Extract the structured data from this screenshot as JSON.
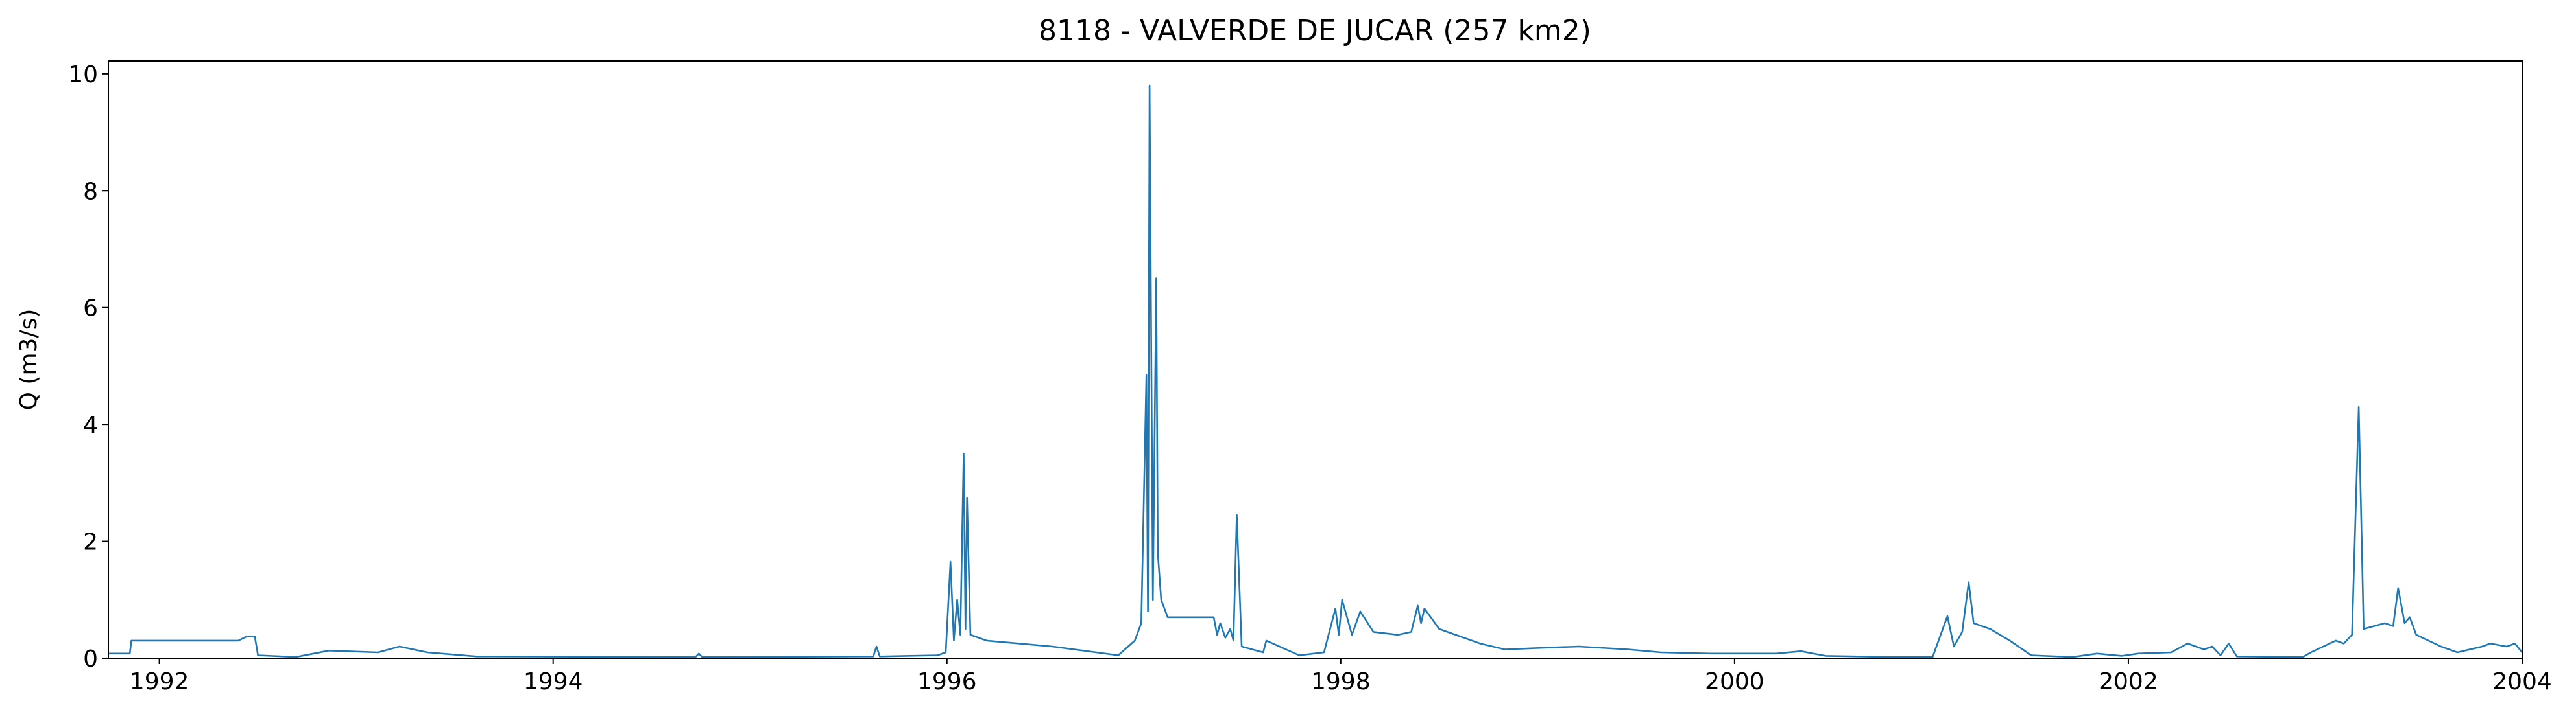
{
  "chart_data": {
    "type": "line",
    "title": "8118 - VALVERDE DE JUCAR (257 km2)",
    "ylabel": "Q (m3/s)",
    "color": "#1f77b4",
    "grid": false,
    "xlim": [
      1991.741,
      2004
    ],
    "xticks": [
      1992,
      1994,
      1996,
      1998,
      2000,
      2002,
      2004
    ],
    "ylim": [
      0,
      10.22
    ],
    "yticks": [
      0,
      2,
      4,
      6,
      8,
      10
    ],
    "x": [
      1991.741,
      1991.85,
      1991.858,
      1992.401,
      1992.443,
      1992.485,
      1992.501,
      1992.693,
      1992.86,
      1993.111,
      1993.22,
      1993.362,
      1993.612,
      1994.723,
      1994.74,
      1994.757,
      1995.626,
      1995.642,
      1995.659,
      1995.952,
      1995.994,
      1996.018,
      1996.035,
      1996.052,
      1996.068,
      1996.085,
      1996.094,
      1996.102,
      1996.119,
      1996.202,
      1996.369,
      1996.536,
      1996.87,
      1996.954,
      1996.987,
      1997.013,
      1997.021,
      1997.029,
      1997.046,
      1997.063,
      1997.071,
      1997.088,
      1997.121,
      1997.355,
      1997.372,
      1997.388,
      1997.414,
      1997.439,
      1997.455,
      1997.472,
      1997.497,
      1997.606,
      1997.622,
      1997.789,
      1997.915,
      1997.973,
      1997.99,
      1998.007,
      1998.057,
      1998.099,
      1998.166,
      1998.291,
      1998.358,
      1998.391,
      1998.408,
      1998.425,
      1998.5,
      1998.625,
      1998.708,
      1998.834,
      1999.043,
      1999.21,
      1999.46,
      1999.627,
      1999.878,
      2000.212,
      2000.337,
      2000.463,
      2000.797,
      2001.006,
      2001.081,
      2001.114,
      2001.156,
      2001.189,
      2001.214,
      2001.298,
      2001.398,
      2001.507,
      2001.716,
      2001.841,
      2001.967,
      2002.05,
      2002.217,
      2002.301,
      2002.384,
      2002.426,
      2002.468,
      2002.51,
      2002.551,
      2002.886,
      2002.927,
      2003.053,
      2003.094,
      2003.136,
      2003.17,
      2003.195,
      2003.303,
      2003.345,
      2003.37,
      2003.403,
      2003.429,
      2003.462,
      2003.588,
      2003.671,
      2003.797,
      2003.838,
      2003.922,
      2003.963,
      2004
    ],
    "series": [
      {
        "name": "Q",
        "values": [
          0.08,
          0.08,
          0.3,
          0.3,
          0.37,
          0.37,
          0.05,
          0.02,
          0.13,
          0.1,
          0.2,
          0.1,
          0.03,
          0.02,
          0.08,
          0.02,
          0.03,
          0.2,
          0.03,
          0.05,
          0.1,
          1.65,
          0.3,
          1.0,
          0.4,
          3.5,
          0.5,
          2.75,
          0.4,
          0.3,
          0.25,
          0.2,
          0.05,
          0.3,
          0.6,
          4.85,
          0.8,
          9.8,
          1.0,
          6.5,
          1.8,
          1.0,
          0.7,
          0.7,
          0.4,
          0.6,
          0.35,
          0.5,
          0.3,
          2.45,
          0.2,
          0.1,
          0.3,
          0.05,
          0.1,
          0.85,
          0.4,
          1.0,
          0.4,
          0.8,
          0.45,
          0.4,
          0.45,
          0.9,
          0.6,
          0.85,
          0.5,
          0.35,
          0.25,
          0.15,
          0.18,
          0.2,
          0.15,
          0.1,
          0.08,
          0.08,
          0.12,
          0.04,
          0.02,
          0.02,
          0.72,
          0.2,
          0.45,
          1.3,
          0.6,
          0.5,
          0.3,
          0.05,
          0.02,
          0.08,
          0.04,
          0.08,
          0.1,
          0.25,
          0.15,
          0.2,
          0.05,
          0.25,
          0.03,
          0.02,
          0.1,
          0.3,
          0.25,
          0.4,
          4.3,
          0.5,
          0.6,
          0.55,
          1.2,
          0.6,
          0.7,
          0.4,
          0.2,
          0.1,
          0.2,
          0.25,
          0.2,
          0.25,
          0.1
        ]
      }
    ]
  }
}
